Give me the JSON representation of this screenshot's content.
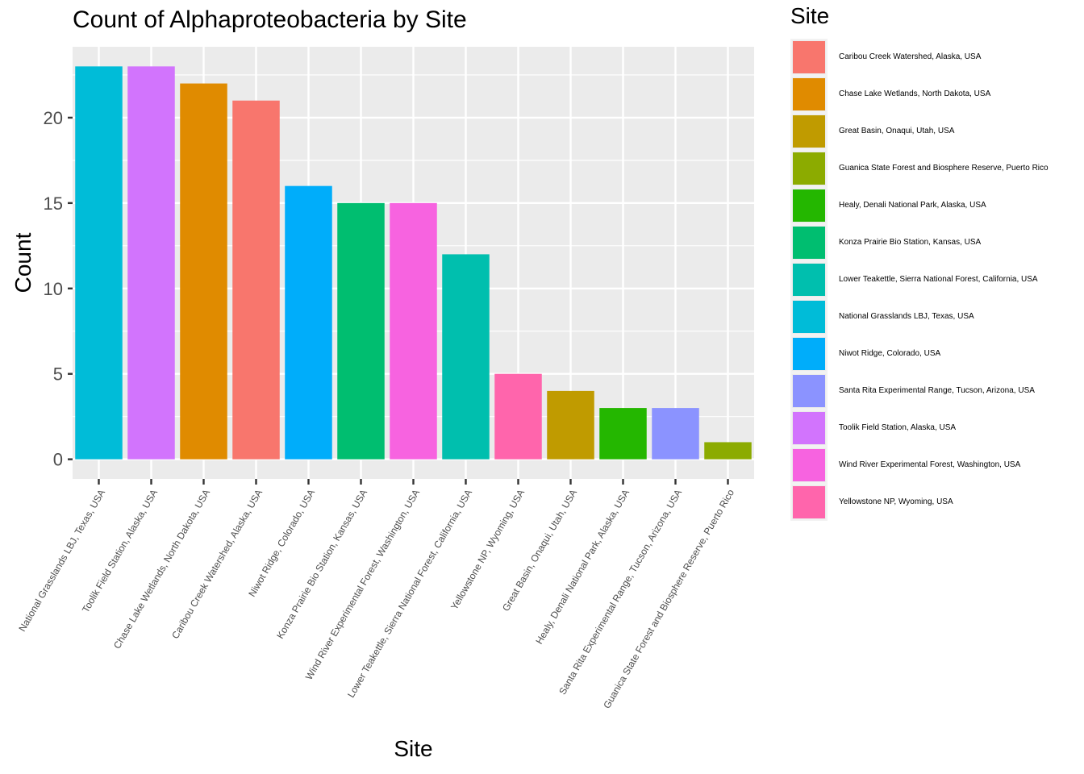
{
  "chart_data": {
    "type": "bar",
    "title": "Count of Alphaproteobacteria by Site",
    "xlabel": "Site",
    "ylabel": "Count",
    "ylim": [
      -1.15,
      24.15
    ],
    "yticks": [
      0,
      5,
      10,
      15,
      20
    ],
    "grid": true,
    "legend_title": "Site",
    "legend_position": "right",
    "categories": [
      "National Grasslands LBJ, Texas, USA",
      "Toolik Field Station, Alaska, USA",
      "Chase Lake Wetlands, North Dakota, USA",
      "Caribou Creek Watershed, Alaska, USA",
      "Niwot Ridge, Colorado, USA",
      "Konza Prairie Bio Station, Kansas, USA",
      "Wind River Experimental Forest, Washington, USA",
      "Lower Teakettle, Sierra National Forest, California, USA",
      "Yellowstone NP, Wyoming, USA",
      "Great Basin, Onaqui, Utah, USA",
      "Healy, Denali National Park, Alaska, USA",
      "Santa Rita Experimental Range, Tucson, Arizona, USA",
      "Guanica State Forest and Biosphere Reserve, Puerto Rico"
    ],
    "values": [
      23,
      23,
      22,
      21,
      16,
      15,
      15,
      12,
      5,
      4,
      3,
      3,
      1
    ],
    "colors": [
      "#00BCD8",
      "#D274FD",
      "#E08B00",
      "#F8766D",
      "#00ADFA",
      "#00BE70",
      "#F763E0",
      "#00BFAE",
      "#FF65AC",
      "#C09B00",
      "#24B700",
      "#8B93FF",
      "#8CAB00"
    ],
    "legend": [
      {
        "label": "Caribou Creek Watershed, Alaska, USA",
        "color": "#F8766D"
      },
      {
        "label": "Chase Lake Wetlands, North Dakota, USA",
        "color": "#E08B00"
      },
      {
        "label": "Great Basin, Onaqui, Utah, USA",
        "color": "#C09B00"
      },
      {
        "label": "Guanica State Forest and Biosphere Reserve, Puerto Rico",
        "color": "#8CAB00"
      },
      {
        "label": "Healy, Denali National Park, Alaska, USA",
        "color": "#24B700"
      },
      {
        "label": "Konza Prairie Bio Station, Kansas, USA",
        "color": "#00BE70"
      },
      {
        "label": "Lower Teakettle, Sierra National Forest, California, USA",
        "color": "#00BFAE"
      },
      {
        "label": "National Grasslands LBJ, Texas, USA",
        "color": "#00BCD8"
      },
      {
        "label": "Niwot Ridge, Colorado, USA",
        "color": "#00ADFA"
      },
      {
        "label": "Santa Rita Experimental Range, Tucson, Arizona, USA",
        "color": "#8B93FF"
      },
      {
        "label": "Toolik Field Station, Alaska, USA",
        "color": "#D274FD"
      },
      {
        "label": "Wind River Experimental Forest, Washington, USA",
        "color": "#F763E0"
      },
      {
        "label": "Yellowstone NP, Wyoming, USA",
        "color": "#FF65AC"
      }
    ]
  }
}
